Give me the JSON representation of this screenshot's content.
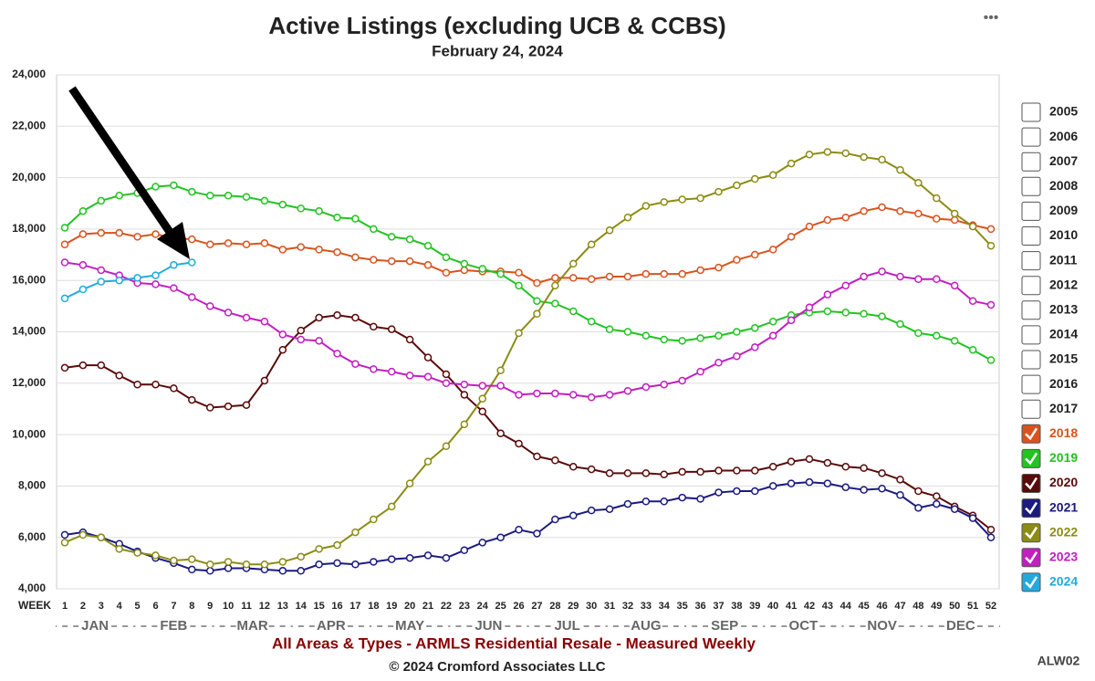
{
  "chart_data": {
    "type": "line",
    "title": "Active Listings (excluding UCB & CCBS)",
    "subtitle": "February 24, 2024",
    "x_label": "WEEK",
    "months": [
      "JAN",
      "FEB",
      "MAR",
      "APR",
      "MAY",
      "JUN",
      "JUL",
      "AUG",
      "SEP",
      "OCT",
      "NOV",
      "DEC"
    ],
    "footer": "All Areas & Types - ARMLS Residential Resale - Measured Weekly",
    "copyright": "© 2024 Cromford Associates LLC",
    "code": "ALW02",
    "ylim": [
      4000,
      24000
    ],
    "yticks": [
      {
        "value": 4000,
        "label": "4,000"
      },
      {
        "value": 6000,
        "label": "6,000"
      },
      {
        "value": 8000,
        "label": "8,000"
      },
      {
        "value": 10000,
        "label": "10,000"
      },
      {
        "value": 12000,
        "label": "12,000"
      },
      {
        "value": 14000,
        "label": "14,000"
      },
      {
        "value": 16000,
        "label": "16,000"
      },
      {
        "value": 18000,
        "label": "18,000"
      },
      {
        "value": 20000,
        "label": "20,000"
      },
      {
        "value": 22000,
        "label": "22,000"
      },
      {
        "value": 24000,
        "label": "24,000"
      }
    ],
    "grid": true,
    "categories": [
      1,
      2,
      3,
      4,
      5,
      6,
      7,
      8,
      9,
      10,
      11,
      12,
      13,
      14,
      15,
      16,
      17,
      18,
      19,
      20,
      21,
      22,
      23,
      24,
      25,
      26,
      27,
      28,
      29,
      30,
      31,
      32,
      33,
      34,
      35,
      36,
      37,
      38,
      39,
      40,
      41,
      42,
      43,
      44,
      45,
      46,
      47,
      48,
      49,
      50,
      51,
      52
    ],
    "inactive_legend": [
      "2005",
      "2006",
      "2007",
      "2008",
      "2009",
      "2010",
      "2011",
      "2012",
      "2013",
      "2014",
      "2015",
      "2016",
      "2017"
    ],
    "series": [
      {
        "name": "2018",
        "color": "#d9531e",
        "values": [
          17400,
          17800,
          17850,
          17850,
          17700,
          17800,
          17650,
          17600,
          17400,
          17450,
          17400,
          17450,
          17200,
          17300,
          17200,
          17100,
          16900,
          16800,
          16750,
          16750,
          16600,
          16300,
          16400,
          16350,
          16350,
          16300,
          15900,
          16100,
          16100,
          16050,
          16150,
          16150,
          16250,
          16250,
          16250,
          16400,
          16500,
          16800,
          17000,
          17200,
          17700,
          18100,
          18350,
          18450,
          18700,
          18850,
          18700,
          18600,
          18400,
          18350,
          18150,
          18000
        ]
      },
      {
        "name": "2019",
        "color": "#22c322",
        "values": [
          18050,
          18700,
          19100,
          19300,
          19400,
          19650,
          19700,
          19450,
          19300,
          19300,
          19250,
          19100,
          18950,
          18800,
          18700,
          18450,
          18400,
          18000,
          17700,
          17600,
          17350,
          16900,
          16650,
          16450,
          16250,
          15800,
          15200,
          15100,
          14800,
          14400,
          14100,
          14000,
          13850,
          13700,
          13650,
          13750,
          13850,
          14000,
          14150,
          14400,
          14650,
          14750,
          14800,
          14750,
          14700,
          14600,
          14300,
          13950,
          13850,
          13650,
          13300,
          12900
        ]
      },
      {
        "name": "2020",
        "color": "#5a0a0a",
        "values": [
          12600,
          12700,
          12700,
          12300,
          11950,
          11950,
          11800,
          11350,
          11050,
          11100,
          11150,
          12100,
          13300,
          14050,
          14550,
          14650,
          14550,
          14200,
          14100,
          13700,
          13000,
          12350,
          11550,
          10900,
          10050,
          9650,
          9150,
          9000,
          8750,
          8650,
          8500,
          8500,
          8500,
          8450,
          8550,
          8550,
          8600,
          8600,
          8600,
          8750,
          8950,
          9050,
          8900,
          8750,
          8700,
          8500,
          8250,
          7800,
          7600,
          7200,
          6850,
          6300
        ]
      },
      {
        "name": "2021",
        "color": "#1a1a80",
        "values": [
          6100,
          6200,
          6000,
          5750,
          5450,
          5200,
          5000,
          4750,
          4700,
          4800,
          4800,
          4750,
          4700,
          4700,
          4950,
          5000,
          4950,
          5050,
          5150,
          5200,
          5300,
          5200,
          5500,
          5800,
          6000,
          6300,
          6150,
          6700,
          6850,
          7050,
          7100,
          7300,
          7400,
          7400,
          7550,
          7500,
          7750,
          7800,
          7800,
          8000,
          8100,
          8150,
          8100,
          7950,
          7850,
          7900,
          7650,
          7150,
          7300,
          7100,
          6750,
          6000
        ]
      },
      {
        "name": "2022",
        "color": "#8c8c14",
        "values": [
          5800,
          6100,
          6000,
          5550,
          5400,
          5300,
          5100,
          5150,
          4950,
          5050,
          4950,
          4950,
          5050,
          5250,
          5550,
          5700,
          6200,
          6700,
          7200,
          8100,
          8950,
          9550,
          10400,
          11400,
          12500,
          13950,
          14700,
          15800,
          16650,
          17400,
          17950,
          18450,
          18900,
          19050,
          19150,
          19200,
          19450,
          19700,
          19950,
          20100,
          20550,
          20900,
          21000,
          20950,
          20800,
          20700,
          20300,
          19800,
          19200,
          18600,
          18100,
          17350
        ]
      },
      {
        "name": "2023",
        "color": "#c21ec2",
        "values": [
          16700,
          16600,
          16400,
          16200,
          15900,
          15850,
          15700,
          15350,
          15000,
          14750,
          14550,
          14400,
          13900,
          13700,
          13650,
          13150,
          12750,
          12550,
          12450,
          12300,
          12250,
          12000,
          11950,
          11900,
          11900,
          11550,
          11600,
          11600,
          11550,
          11450,
          11550,
          11700,
          11850,
          11950,
          12100,
          12450,
          12800,
          13050,
          13400,
          13850,
          14450,
          14950,
          15450,
          15800,
          16150,
          16350,
          16150,
          16050,
          16050,
          15800,
          15200,
          15050
        ]
      },
      {
        "name": "2024",
        "color": "#22aadd",
        "values": [
          15300,
          15650,
          15950,
          16000,
          16100,
          16200,
          16600,
          16700,
          null,
          null,
          null,
          null,
          null,
          null,
          null,
          null,
          null,
          null,
          null,
          null,
          null,
          null,
          null,
          null,
          null,
          null,
          null,
          null,
          null,
          null,
          null,
          null,
          null,
          null,
          null,
          null,
          null,
          null,
          null,
          null,
          null,
          null,
          null,
          null,
          null,
          null,
          null,
          null,
          null,
          null,
          null,
          null
        ]
      }
    ]
  }
}
